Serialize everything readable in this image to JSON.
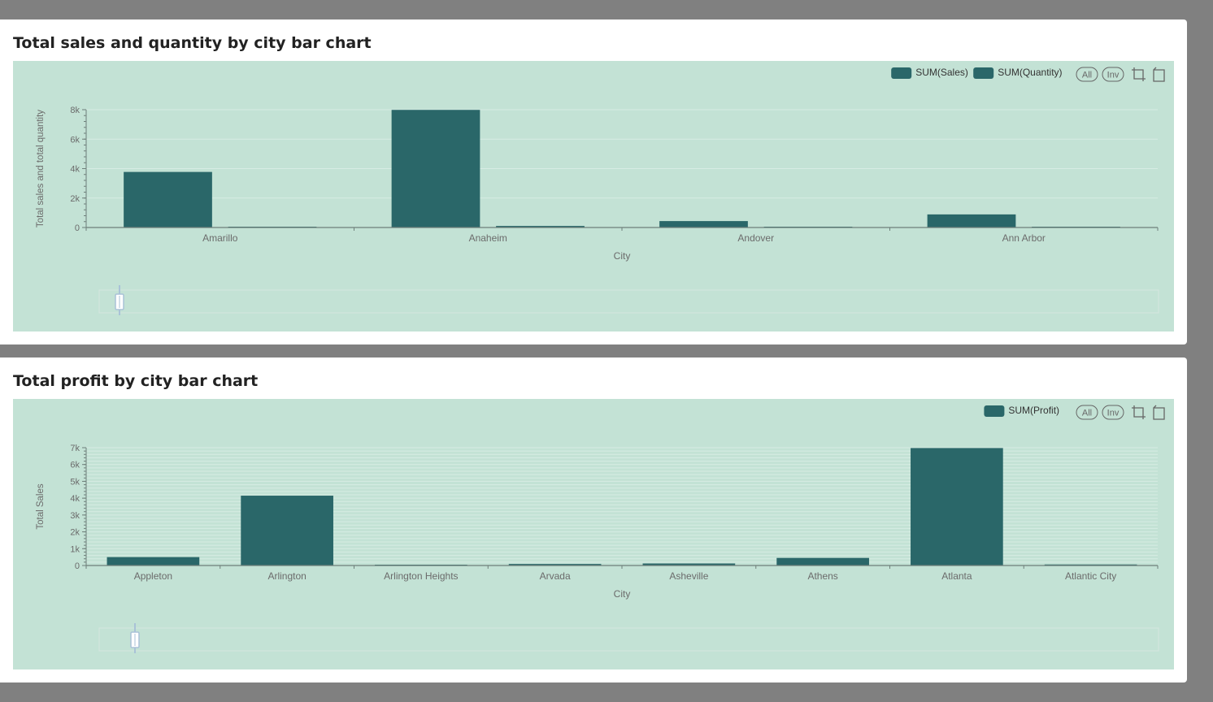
{
  "colors": {
    "page_bg": "#808080",
    "card_bg": "#ffffff",
    "plot_bg": "#c3e2d5",
    "bar": "#2a6769",
    "axis": "#6e7f7a",
    "grid": "#d7ece4",
    "text": "#6b6b6b"
  },
  "toolbar": {
    "all_label": "All",
    "inv_label": "Inv"
  },
  "charts": [
    {
      "title": "Total sales and quantity by city bar chart",
      "chart_data": {
        "type": "bar",
        "categories": [
          "Amarillo",
          "Anaheim",
          "Andover",
          "Ann Arbor"
        ],
        "series": [
          {
            "name": "SUM(Sales)",
            "values": [
              3773,
              7987,
              436,
              889
            ]
          },
          {
            "name": "SUM(Quantity)",
            "values": [
              45,
              106,
              6,
              30
            ]
          }
        ],
        "xlabel": "City",
        "ylabel": "Total sales and total quantity",
        "ylim": [
          0,
          8000
        ],
        "yticks": [
          0,
          2000,
          4000,
          6000,
          8000
        ],
        "ytick_labels": [
          "0",
          "2k",
          "4k",
          "6k",
          "8k"
        ],
        "grid": true,
        "minor_ticks": 4,
        "dense_grid": false,
        "legend": "top-right"
      }
    },
    {
      "title": "Total profit by city bar chart",
      "chart_data": {
        "type": "bar",
        "categories": [
          "Appleton",
          "Arlington",
          "Arlington Heights",
          "Arvada",
          "Asheville",
          "Athens",
          "Atlanta",
          "Atlantic City"
        ],
        "series": [
          {
            "name": "SUM(Profit)",
            "values": [
              500,
              4150,
              15,
              90,
              120,
              450,
              6980,
              60
            ]
          }
        ],
        "xlabel": "City",
        "ylabel": "Total Sales",
        "ylim": [
          0,
          7000
        ],
        "yticks": [
          0,
          1000,
          2000,
          3000,
          4000,
          5000,
          6000,
          7000
        ],
        "ytick_labels": [
          "0",
          "1k",
          "2k",
          "3k",
          "4k",
          "5k",
          "6k",
          "7k"
        ],
        "grid": true,
        "minor_ticks": 4,
        "dense_grid": true,
        "legend": "top-right"
      }
    }
  ]
}
